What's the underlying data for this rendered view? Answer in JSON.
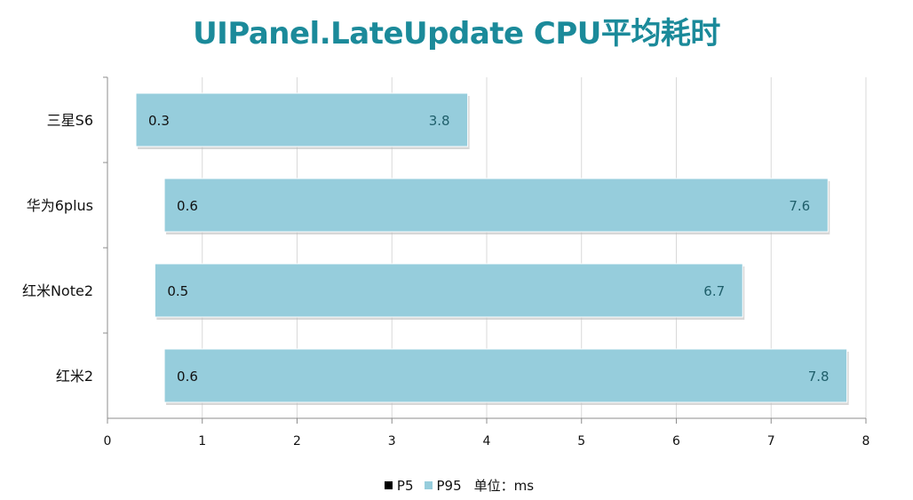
{
  "chart_data": {
    "type": "bar",
    "orientation": "horizontal",
    "title": "UIPanel.LateUpdate CPU平均耗时",
    "categories": [
      "三星S6",
      "华为6plus",
      "红米Note2",
      "红米2"
    ],
    "series": [
      {
        "name": "P5",
        "values": [
          0.3,
          0.6,
          0.5,
          0.6
        ],
        "color": "#000000"
      },
      {
        "name": "P95",
        "values": [
          3.8,
          7.6,
          6.7,
          7.8
        ],
        "color": "#96cddc"
      }
    ],
    "xticks": [
      "0",
      "1",
      "2",
      "3",
      "4",
      "5",
      "6",
      "7",
      "8"
    ],
    "xlim": [
      0,
      8
    ],
    "grid": true,
    "legend_position": "bottom",
    "unit_label": "单位：ms"
  }
}
